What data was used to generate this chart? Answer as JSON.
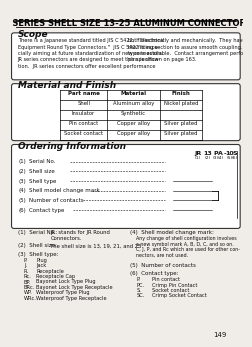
{
  "title": "JR SERIES SHELL SIZE 13-25 ALUMINUM CONNECTORS",
  "page_bg": "#f0ede8",
  "section1_title": "Scope",
  "scope_text_left": [
    "There is a Japanese standard titled JIS C 5422,  \"Electronic",
    "Equipment Round Type Connectors.\"  JIS C 5422 is espe-",
    "cially aiming at future standardization of new connectors.",
    "JR series connectors are designed to meet this specifica-",
    "tion.  JR series connectors offer excellent performance"
  ],
  "scope_text_right": [
    "both electrically and mechanically.  They have fine keys in",
    "the fitting section to assure smooth coupling.  A waterproof",
    "type is available.  Contact arrangement performance of the",
    "pins is shown on page 163."
  ],
  "section2_title": "Material and Finish",
  "table_headers": [
    "Part name",
    "Material",
    "Finish"
  ],
  "table_rows": [
    [
      "Shell",
      "Aluminum alloy",
      "Nickel plated"
    ],
    [
      "Insulator",
      "Synthetic",
      ""
    ],
    [
      "Pin contact",
      "Copper alloy",
      "Silver plated"
    ],
    [
      "Socket contact",
      "Copper alloy",
      "Silver plated"
    ]
  ],
  "section3_title": "Ordering Information",
  "order_code": [
    "JR",
    "13",
    "P",
    "A",
    "-",
    "10",
    "S"
  ],
  "order_nums": [
    "(1)",
    "(2)",
    "(3)",
    "(4)",
    "",
    "(5)",
    "(6)"
  ],
  "order_x": [
    242,
    255,
    265,
    272,
    277,
    283,
    290
  ],
  "ordering_fields": [
    [
      "(1)",
      "Serial No."
    ],
    [
      "(2)",
      "Shell size"
    ],
    [
      "(3)",
      "Shell type"
    ],
    [
      "(4)",
      "Shell model change mark"
    ],
    [
      "(5)",
      "Number of contacts"
    ],
    [
      "(6)",
      "Contact type"
    ]
  ],
  "note1_label": "(1)  Serial No.:",
  "note1_val": "JR  stands for JR Round",
  "note1_val2": "Connectors.",
  "note2_label": "(2)  Shell size:",
  "note2_val": "The shell size is 13, 19, 21, and 25.",
  "note3_label": "(3)  Shell type:",
  "shell_codes": [
    "P.",
    "J.",
    "R.",
    "Rc.",
    "BP.",
    "BRc.",
    "WP.",
    "WRc."
  ],
  "shell_descs": [
    "Plug",
    "Jack",
    "Receptacle",
    "Receptacle Cap",
    "Bayonet Lock Type Plug",
    "Bayonet Lock Type Receptacle",
    "Waterproof Type Plug",
    "Waterproof Type Receptacle"
  ],
  "note4_label": "(4)  Shell model change mark:",
  "note4_lines": [
    "Any change of shell configuration involves",
    "a new symbol mark A, B, D, C, and so on.",
    "C, J, P, and Rc which are used for other con-",
    "nectors, are not used."
  ],
  "note5_label": "(5)  Number of contacts",
  "note6_label": "(6)  Contact type:",
  "contact_codes": [
    "P.",
    "PC.",
    "S.",
    "SC."
  ],
  "contact_descs": [
    "Pin contact",
    "Crimp Pin Contact",
    "Socket contact",
    "Crimp Socket Contact"
  ],
  "page_number": "149"
}
